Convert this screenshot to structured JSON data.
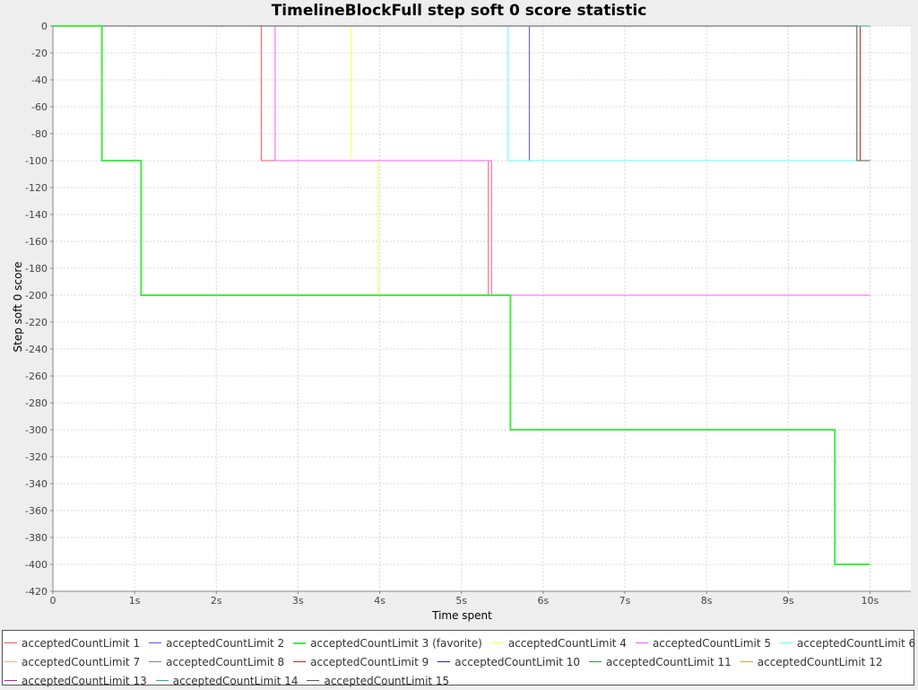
{
  "chart_data": {
    "type": "line",
    "step": true,
    "title": "TimelineBlockFull step soft 0 score statistic",
    "xlabel": "Time spent",
    "ylabel": "Step soft 0 score",
    "xlim": [
      0,
      10.5
    ],
    "ylim": [
      -420,
      0
    ],
    "x_ticks": [
      0,
      1,
      2,
      3,
      4,
      5,
      6,
      7,
      8,
      9,
      10
    ],
    "x_tick_labels": [
      "0",
      "1s",
      "2s",
      "3s",
      "4s",
      "5s",
      "6s",
      "7s",
      "8s",
      "9s",
      "10s"
    ],
    "y_ticks": [
      0,
      -20,
      -40,
      -60,
      -80,
      -100,
      -120,
      -140,
      -160,
      -180,
      -200,
      -220,
      -240,
      -260,
      -280,
      -300,
      -320,
      -340,
      -360,
      -380,
      -400,
      -420
    ],
    "grid": true,
    "legend_position": "bottom",
    "series": [
      {
        "name": "acceptedCountLimit 1",
        "color": "#ff5555",
        "points": [
          [
            0.15,
            0
          ],
          [
            2.55,
            0
          ],
          [
            2.55,
            -100
          ],
          [
            5.33,
            -100
          ],
          [
            5.33,
            -200
          ],
          [
            10.0,
            -200
          ]
        ]
      },
      {
        "name": "acceptedCountLimit 2",
        "color": "#5555ff",
        "points": [
          [
            0.15,
            0
          ],
          [
            5.83,
            0
          ],
          [
            5.83,
            -100
          ],
          [
            10.0,
            -100
          ]
        ]
      },
      {
        "name": "acceptedCountLimit 3 (favorite)",
        "color": "#44ee44",
        "favorite": true,
        "points": [
          [
            0.0,
            0
          ],
          [
            0.6,
            0
          ],
          [
            0.6,
            -100
          ],
          [
            1.08,
            -100
          ],
          [
            1.08,
            -200
          ],
          [
            5.6,
            -200
          ],
          [
            5.6,
            -300
          ],
          [
            9.57,
            -300
          ],
          [
            9.57,
            -400
          ],
          [
            10.0,
            -400
          ]
        ]
      },
      {
        "name": "acceptedCountLimit 4",
        "color": "#ffff55",
        "points": [
          [
            0.15,
            0
          ],
          [
            3.65,
            0
          ],
          [
            3.65,
            -100
          ],
          [
            3.98,
            -100
          ],
          [
            3.98,
            -200
          ],
          [
            10.0,
            -200
          ]
        ]
      },
      {
        "name": "acceptedCountLimit 5",
        "color": "#ff55ff",
        "points": [
          [
            0.15,
            0
          ],
          [
            2.72,
            0
          ],
          [
            2.72,
            -100
          ],
          [
            5.37,
            -100
          ],
          [
            5.37,
            -200
          ],
          [
            10.0,
            -200
          ]
        ]
      },
      {
        "name": "acceptedCountLimit 6",
        "color": "#55ffff",
        "points": [
          [
            0.15,
            0
          ],
          [
            5.57,
            0
          ],
          [
            5.57,
            -100
          ],
          [
            10.0,
            -100
          ]
        ]
      },
      {
        "name": "acceptedCountLimit 7",
        "color": "#ffaa88",
        "points": [
          [
            0.15,
            0
          ],
          [
            10.0,
            0
          ]
        ]
      },
      {
        "name": "acceptedCountLimit 8",
        "color": "#888888",
        "points": [
          [
            0.15,
            0
          ],
          [
            10.0,
            0
          ]
        ]
      },
      {
        "name": "acceptedCountLimit 9",
        "color": "#cc2222",
        "points": [
          [
            0.15,
            0
          ],
          [
            9.88,
            0
          ],
          [
            9.88,
            -100
          ],
          [
            10.0,
            -100
          ]
        ]
      },
      {
        "name": "acceptedCountLimit 10",
        "color": "#2222aa",
        "points": [
          [
            0.15,
            0
          ],
          [
            10.0,
            0
          ]
        ]
      },
      {
        "name": "acceptedCountLimit 11",
        "color": "#22aa22",
        "points": [
          [
            0.15,
            0
          ],
          [
            10.0,
            0
          ]
        ]
      },
      {
        "name": "acceptedCountLimit 12",
        "color": "#ccaa22",
        "points": [
          [
            0.15,
            0
          ],
          [
            10.0,
            0
          ]
        ]
      },
      {
        "name": "acceptedCountLimit 13",
        "color": "#aa22aa",
        "points": [
          [
            0.15,
            0
          ],
          [
            10.0,
            0
          ]
        ]
      },
      {
        "name": "acceptedCountLimit 14",
        "color": "#22aaaa",
        "points": [
          [
            0.15,
            0
          ],
          [
            10.0,
            0
          ]
        ]
      },
      {
        "name": "acceptedCountLimit 15",
        "color": "#555555",
        "points": [
          [
            0.15,
            0
          ],
          [
            9.84,
            0
          ],
          [
            9.84,
            -100
          ],
          [
            10.0,
            -100
          ]
        ]
      }
    ]
  },
  "legend_rows": [
    [
      0,
      1,
      2,
      3,
      4,
      5
    ],
    [
      6,
      7,
      8,
      9,
      10,
      11
    ],
    [
      12,
      13,
      14
    ]
  ]
}
